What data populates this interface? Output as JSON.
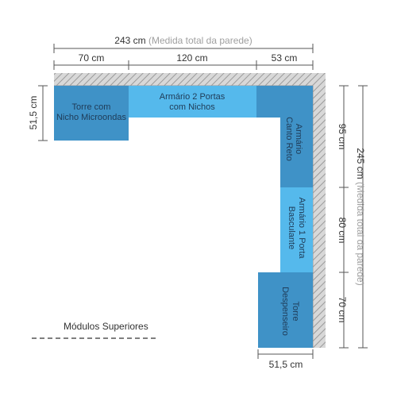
{
  "dimensions": {
    "top_total_value": "243 cm",
    "top_total_note": "(Medida total da parede)",
    "top_left": "70 cm",
    "top_middle": "120 cm",
    "top_right": "53 cm",
    "left_height": "51,5 cm",
    "right_upper": "95 cm",
    "right_middle": "80 cm",
    "right_lower": "70 cm",
    "right_total_value": "245 cm",
    "right_total_note": "(Medida total da parede)",
    "bottom_width": "51,5 cm"
  },
  "modules": {
    "torre_microondas": {
      "line1": "Torre com",
      "line2": "Nicho Microondas"
    },
    "armario_2_portas": {
      "line1": "Armário 2 Portas",
      "line2": "com Nichos"
    },
    "armario_canto": {
      "line1": "Armário",
      "line2": "Canto Reto"
    },
    "armario_basculante": {
      "line1": "Armário 1 Porta",
      "line2": "Basculante"
    },
    "torre_despenseiro": {
      "line1": "Torre",
      "line2": "Despenseiro"
    }
  },
  "legend": {
    "label": "Módulos Superiores"
  },
  "colors": {
    "dark_blue": "#3f92c7",
    "light_blue": "#55b9ec",
    "wall_hatch": "#b9b9b9",
    "dimension_line": "#555555",
    "text_dark": "#1f3b57"
  }
}
